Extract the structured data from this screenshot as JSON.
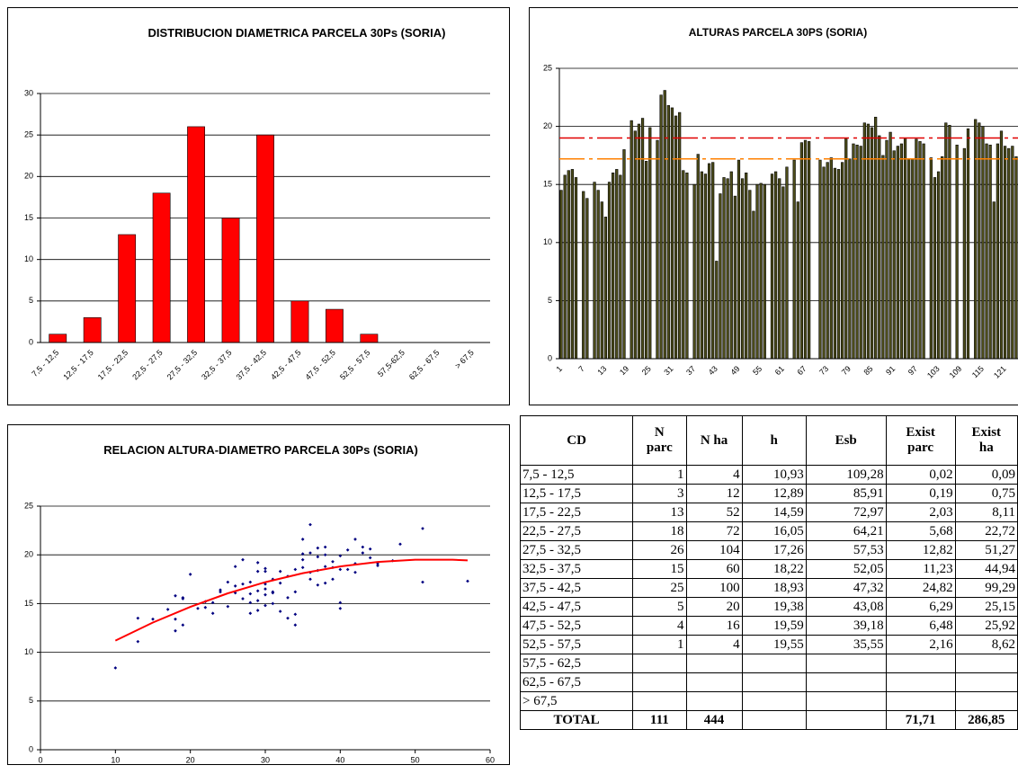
{
  "chart_data": [
    {
      "type": "bar",
      "title": "DISTRIBUCION DIAMETRICA PARCELA 30Ps (SORIA)",
      "categories": [
        "7,5 - 12,5",
        "12,5 - 17,5",
        "17,5 - 22,5",
        "22,5 - 27,5",
        "27,5 - 32,5",
        "32,5 - 37,5",
        "37,5 - 42,5",
        "42,5 - 47,5",
        "47,5 - 52,5",
        "52,5 - 57,5",
        "57,5-62,5",
        "62,5 - 67,5",
        "> 67,5"
      ],
      "values": [
        1,
        3,
        13,
        18,
        26,
        15,
        25,
        5,
        4,
        1,
        0,
        0,
        0
      ],
      "color": "#ff0000",
      "ylim": [
        0,
        30
      ],
      "yticks": [
        0,
        5,
        10,
        15,
        20,
        25,
        30
      ],
      "grid": true
    },
    {
      "type": "bar",
      "title": "ALTURAS PARCELA 30PS (SORIA)",
      "categories": [
        "1",
        null,
        null,
        null,
        null,
        null,
        "7",
        null,
        null,
        null,
        null,
        null,
        "13",
        null,
        null,
        null,
        null,
        null,
        "19",
        null,
        null,
        null,
        null,
        null,
        "25",
        null,
        null,
        null,
        null,
        null,
        "31",
        null,
        null,
        null,
        null,
        null,
        "37",
        null,
        null,
        null,
        null,
        null,
        "43",
        null,
        null,
        null,
        null,
        null,
        "49",
        null,
        null,
        null,
        null,
        null,
        "55",
        null,
        null,
        null,
        null,
        null,
        "61",
        null,
        null,
        null,
        null,
        null,
        "67",
        null,
        null,
        null,
        null,
        null,
        "73",
        null,
        null,
        null,
        null,
        null,
        "79",
        null,
        null,
        null,
        null,
        null,
        "85",
        null,
        null,
        null,
        null,
        null,
        "91",
        null,
        null,
        null,
        null,
        null,
        "97",
        null,
        null,
        null,
        null,
        null,
        "103",
        null,
        null,
        null,
        null,
        null,
        "109",
        null,
        null,
        null,
        null,
        null,
        "115",
        null,
        null,
        null,
        null,
        null,
        "121",
        null,
        null,
        null
      ],
      "values": [
        14.5,
        15.8,
        16.2,
        16.3,
        15.6,
        null,
        14.4,
        13.8,
        null,
        15.2,
        14.5,
        13.5,
        12.2,
        15.2,
        16,
        16.3,
        15.8,
        18,
        null,
        20.5,
        19.6,
        20.2,
        20.7,
        17,
        19.9,
        null,
        18.8,
        22.7,
        23.1,
        21.8,
        21.6,
        20.9,
        21.2,
        16.2,
        16,
        null,
        15,
        17.6,
        16.1,
        15.9,
        16.8,
        16.9,
        8.4,
        14.2,
        15.6,
        15.5,
        16.1,
        14,
        17.1,
        15.5,
        16,
        14.5,
        12.7,
        15,
        15.1,
        15,
        null,
        15.9,
        16.1,
        15.5,
        14.8,
        16.5,
        null,
        17.1,
        13.5,
        18.6,
        18.8,
        18.7,
        null,
        null,
        17.1,
        16.5,
        16.9,
        17.3,
        16.4,
        16.3,
        16.9,
        19,
        17.2,
        18.5,
        18.4,
        18.3,
        20.3,
        20.2,
        19.9,
        20.8,
        19.2,
        17.5,
        18.8,
        19.5,
        17.9,
        18.3,
        18.5,
        19,
        17.2,
        17.2,
        18.9,
        18.7,
        18.5,
        null,
        17.3,
        15.6,
        16.1,
        17.4,
        20.3,
        20.1,
        null,
        18.4,
        null,
        18.1,
        19.8,
        null,
        20.6,
        20.3,
        20,
        18.5,
        18.4,
        13.5,
        18.5,
        19.6,
        18.3,
        18.1,
        18.3,
        17.4
      ],
      "color": "#4d4d1a",
      "reference_lines": [
        {
          "value": 19,
          "color": "#e00000"
        },
        {
          "value": 17.2,
          "color": "#ff8000"
        }
      ],
      "ylim": [
        0,
        25
      ],
      "yticks": [
        0,
        5,
        10,
        15,
        20,
        25
      ],
      "grid": true
    },
    {
      "type": "scatter",
      "title": "RELACION ALTURA-DIAMETRO PARCELA 30Ps (SORIA)",
      "x": [
        10,
        13,
        13,
        15,
        17,
        18,
        18,
        18,
        19,
        19,
        19,
        20,
        21,
        22,
        22,
        23,
        23,
        24,
        24,
        25,
        25,
        26,
        26,
        26,
        27,
        27,
        27,
        28,
        28,
        28,
        28,
        29,
        29,
        29,
        29,
        29,
        30,
        30,
        30,
        30,
        30,
        30,
        31,
        31,
        31,
        31,
        32,
        32,
        32,
        33,
        33,
        33,
        34,
        34,
        34,
        34,
        35,
        35,
        35,
        35,
        36,
        36,
        36,
        36,
        37,
        37,
        37,
        37,
        38,
        38,
        38,
        38,
        39,
        39,
        39,
        40,
        40,
        40,
        40,
        41,
        41,
        42,
        42,
        42,
        43,
        43,
        44,
        44,
        45,
        45,
        47,
        48,
        51,
        51,
        57
      ],
      "values": [
        8.4,
        11.1,
        13.5,
        13.4,
        14.4,
        12.2,
        13.4,
        15.8,
        12.8,
        15.5,
        15.6,
        18,
        14.5,
        14.6,
        15.2,
        14,
        15.1,
        16.2,
        16.4,
        17.2,
        14.7,
        16.1,
        16.8,
        18.8,
        15.5,
        19.5,
        17,
        15.1,
        16,
        14,
        17.2,
        14.3,
        16.3,
        18.3,
        19.2,
        15.3,
        14.8,
        15.9,
        16.5,
        17,
        18.3,
        18.6,
        15,
        16.2,
        17.5,
        16.1,
        14.2,
        17.1,
        18.3,
        13.5,
        15.6,
        17.8,
        12.8,
        13.9,
        16.2,
        18.5,
        18.7,
        19.5,
        20.1,
        21.6,
        18.2,
        20.2,
        23.1,
        17.5,
        16.9,
        18.4,
        19.8,
        20.7,
        17.1,
        18.8,
        20,
        20.8,
        17.5,
        18.7,
        19.3,
        14.5,
        15.1,
        18.5,
        19.9,
        18.5,
        20.5,
        21.6,
        19.1,
        18.2,
        20.2,
        20.8,
        20.6,
        19.7,
        19.1,
        18.9,
        19.4,
        21.1,
        22.7,
        17.2,
        17.3
      ],
      "color": "#000080",
      "trendline": {
        "color": "#ff0000",
        "x": [
          10,
          15,
          20,
          25,
          30,
          35,
          40,
          45,
          50,
          55,
          57
        ],
        "values": [
          11.2,
          13.05,
          14.66,
          16.05,
          17.2,
          18.12,
          18.81,
          19.27,
          19.5,
          19.5,
          19.43
        ]
      },
      "xlim": [
        0,
        60
      ],
      "xticks": [
        0,
        10,
        20,
        30,
        40,
        50,
        60
      ],
      "ylim": [
        0,
        25
      ],
      "yticks": [
        0,
        5,
        10,
        15,
        20,
        25
      ],
      "grid": true
    }
  ],
  "table": {
    "header": [
      "CD",
      "N parc",
      "N ha",
      "h",
      "Esb",
      "Exist parc",
      "Exist ha"
    ],
    "rows": [
      [
        "7,5 - 12,5",
        "1",
        "4",
        "10,93",
        "109,28",
        "0,02",
        "0,09"
      ],
      [
        "12,5 - 17,5",
        "3",
        "12",
        "12,89",
        "85,91",
        "0,19",
        "0,75"
      ],
      [
        "17,5 - 22,5",
        "13",
        "52",
        "14,59",
        "72,97",
        "2,03",
        "8,11"
      ],
      [
        "22,5 - 27,5",
        "18",
        "72",
        "16,05",
        "64,21",
        "5,68",
        "22,72"
      ],
      [
        "27,5 - 32,5",
        "26",
        "104",
        "17,26",
        "57,53",
        "12,82",
        "51,27"
      ],
      [
        "32,5 - 37,5",
        "15",
        "60",
        "18,22",
        "52,05",
        "11,23",
        "44,94"
      ],
      [
        "37,5 - 42,5",
        "25",
        "100",
        "18,93",
        "47,32",
        "24,82",
        "99,29"
      ],
      [
        "42,5 - 47,5",
        "5",
        "20",
        "19,38",
        "43,08",
        "6,29",
        "25,15"
      ],
      [
        "47,5 - 52,5",
        "4",
        "16",
        "19,59",
        "39,18",
        "6,48",
        "25,92"
      ],
      [
        "52,5 - 57,5",
        "1",
        "4",
        "19,55",
        "35,55",
        "2,16",
        "8,62"
      ],
      [
        "57,5 - 62,5"
      ],
      [
        "62,5 - 67,5"
      ],
      [
        "> 67,5"
      ]
    ],
    "total": [
      "TOTAL",
      "111",
      "444",
      null,
      null,
      "71,71",
      "286,85"
    ]
  }
}
